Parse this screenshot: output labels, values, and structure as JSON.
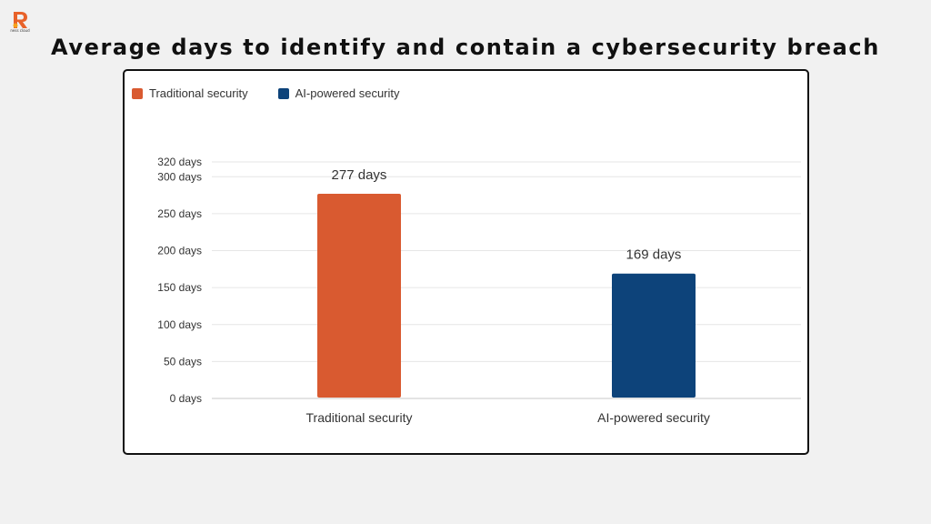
{
  "title": "Average days to identify and contain a cybersecurity breach",
  "logo": {
    "text": "ness cloud",
    "color": "#e8622a"
  },
  "chart_data": {
    "type": "bar",
    "categories": [
      "Traditional security",
      "AI-powered security"
    ],
    "values": [
      277,
      169
    ],
    "value_labels": [
      "277 days",
      "169 days"
    ],
    "series": [
      {
        "name": "Traditional security",
        "color": "#d95a30"
      },
      {
        "name": "AI-powered security",
        "color": "#0d437a"
      }
    ],
    "yticks": [
      {
        "value": 0,
        "label": "0 days"
      },
      {
        "value": 50,
        "label": "50 days"
      },
      {
        "value": 100,
        "label": "100 days"
      },
      {
        "value": 150,
        "label": "150 days"
      },
      {
        "value": 200,
        "label": "200 days"
      },
      {
        "value": 250,
        "label": "250 days"
      },
      {
        "value": 300,
        "label": "300 days"
      },
      {
        "value": 320,
        "label": "320 days"
      }
    ],
    "ylim": [
      0,
      320
    ],
    "grid": true,
    "legend": "top-left"
  }
}
